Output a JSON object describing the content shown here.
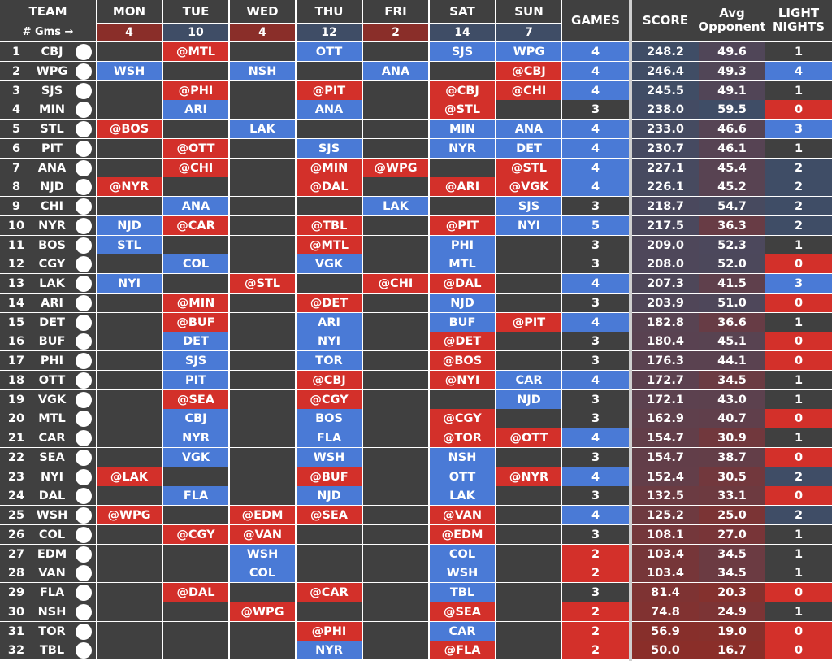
{
  "colors": {
    "blue": "#4a7ad6",
    "red": "#d3302a",
    "dark": "#404040",
    "darkred": "#8a2e29",
    "slate": "#3f4d66"
  },
  "header": {
    "team": "TEAM",
    "gms_label": "# Gms →",
    "days": [
      "MON",
      "TUE",
      "WED",
      "THU",
      "FRI",
      "SAT",
      "SUN"
    ],
    "day_games": [
      "4",
      "10",
      "4",
      "12",
      "2",
      "14",
      "7"
    ],
    "games": "GAMES",
    "score": "SCORE",
    "avg_line1": "Avg",
    "avg_line2": "Opponent",
    "light_line1": "LIGHT",
    "light_line2": "NIGHTS"
  },
  "chart_data": {
    "type": "table",
    "columns": [
      "#",
      "TEAM",
      "MON",
      "TUE",
      "WED",
      "THU",
      "FRI",
      "SAT",
      "SUN",
      "GAMES",
      "SCORE",
      "Avg Opponent",
      "LIGHT NIGHTS"
    ],
    "rows": [
      {
        "rank": "1",
        "team": "CBJ",
        "days": [
          "",
          "@MTL",
          "",
          "OTT",
          "",
          "SJS",
          "WPG"
        ],
        "games": "4",
        "score": "248.2",
        "avg": "49.6",
        "light": "1"
      },
      {
        "rank": "2",
        "team": "WPG",
        "days": [
          "WSH",
          "",
          "NSH",
          "",
          "ANA",
          "",
          "@CBJ"
        ],
        "games": "4",
        "score": "246.4",
        "avg": "49.3",
        "light": "4"
      },
      {
        "rank": "3",
        "team": "SJS",
        "days": [
          "",
          "@PHI",
          "",
          "@PIT",
          "",
          "@CBJ",
          "@CHI"
        ],
        "games": "4",
        "score": "245.5",
        "avg": "49.1",
        "light": "1"
      },
      {
        "rank": "4",
        "team": "MIN",
        "days": [
          "",
          "ARI",
          "",
          "ANA",
          "",
          "@STL",
          ""
        ],
        "games": "3",
        "score": "238.0",
        "avg": "59.5",
        "light": "0"
      },
      {
        "rank": "5",
        "team": "STL",
        "days": [
          "@BOS",
          "",
          "LAK",
          "",
          "",
          "MIN",
          "ANA"
        ],
        "games": "4",
        "score": "233.0",
        "avg": "46.6",
        "light": "3"
      },
      {
        "rank": "6",
        "team": "PIT",
        "days": [
          "",
          "@OTT",
          "",
          "SJS",
          "",
          "NYR",
          "DET"
        ],
        "games": "4",
        "score": "230.7",
        "avg": "46.1",
        "light": "1"
      },
      {
        "rank": "7",
        "team": "ANA",
        "days": [
          "",
          "@CHI",
          "",
          "@MIN",
          "@WPG",
          "",
          "@STL"
        ],
        "games": "4",
        "score": "227.1",
        "avg": "45.4",
        "light": "2"
      },
      {
        "rank": "8",
        "team": "NJD",
        "days": [
          "@NYR",
          "",
          "",
          "@DAL",
          "",
          "@ARI",
          "@VGK"
        ],
        "games": "4",
        "score": "226.1",
        "avg": "45.2",
        "light": "2"
      },
      {
        "rank": "9",
        "team": "CHI",
        "days": [
          "",
          "ANA",
          "",
          "",
          "LAK",
          "",
          "SJS"
        ],
        "games": "3",
        "score": "218.7",
        "avg": "54.7",
        "light": "2"
      },
      {
        "rank": "10",
        "team": "NYR",
        "days": [
          "NJD",
          "@CAR",
          "",
          "@TBL",
          "",
          "@PIT",
          "NYI"
        ],
        "games": "5",
        "score": "217.5",
        "avg": "36.3",
        "light": "2"
      },
      {
        "rank": "11",
        "team": "BOS",
        "days": [
          "STL",
          "",
          "",
          "@MTL",
          "",
          "PHI",
          ""
        ],
        "games": "3",
        "score": "209.0",
        "avg": "52.3",
        "light": "1"
      },
      {
        "rank": "12",
        "team": "CGY",
        "days": [
          "",
          "COL",
          "",
          "VGK",
          "",
          "MTL",
          ""
        ],
        "games": "3",
        "score": "208.0",
        "avg": "52.0",
        "light": "0"
      },
      {
        "rank": "13",
        "team": "LAK",
        "days": [
          "NYI",
          "",
          "@STL",
          "",
          "@CHI",
          "@DAL",
          ""
        ],
        "games": "4",
        "score": "207.3",
        "avg": "41.5",
        "light": "3"
      },
      {
        "rank": "14",
        "team": "ARI",
        "days": [
          "",
          "@MIN",
          "",
          "@DET",
          "",
          "NJD",
          ""
        ],
        "games": "3",
        "score": "203.9",
        "avg": "51.0",
        "light": "0"
      },
      {
        "rank": "15",
        "team": "DET",
        "days": [
          "",
          "@BUF",
          "",
          "ARI",
          "",
          "BUF",
          "@PIT"
        ],
        "games": "4",
        "score": "182.8",
        "avg": "36.6",
        "light": "1"
      },
      {
        "rank": "16",
        "team": "BUF",
        "days": [
          "",
          "DET",
          "",
          "NYI",
          "",
          "@DET",
          ""
        ],
        "games": "3",
        "score": "180.4",
        "avg": "45.1",
        "light": "0"
      },
      {
        "rank": "17",
        "team": "PHI",
        "days": [
          "",
          "SJS",
          "",
          "TOR",
          "",
          "@BOS",
          ""
        ],
        "games": "3",
        "score": "176.3",
        "avg": "44.1",
        "light": "0"
      },
      {
        "rank": "18",
        "team": "OTT",
        "days": [
          "",
          "PIT",
          "",
          "@CBJ",
          "",
          "@NYI",
          "CAR"
        ],
        "games": "4",
        "score": "172.7",
        "avg": "34.5",
        "light": "1"
      },
      {
        "rank": "19",
        "team": "VGK",
        "days": [
          "",
          "@SEA",
          "",
          "@CGY",
          "",
          "",
          "NJD"
        ],
        "games": "3",
        "score": "172.1",
        "avg": "43.0",
        "light": "1"
      },
      {
        "rank": "20",
        "team": "MTL",
        "days": [
          "",
          "CBJ",
          "",
          "BOS",
          "",
          "@CGY",
          ""
        ],
        "games": "3",
        "score": "162.9",
        "avg": "40.7",
        "light": "0"
      },
      {
        "rank": "21",
        "team": "CAR",
        "days": [
          "",
          "NYR",
          "",
          "FLA",
          "",
          "@TOR",
          "@OTT"
        ],
        "games": "4",
        "score": "154.7",
        "avg": "30.9",
        "light": "1"
      },
      {
        "rank": "22",
        "team": "SEA",
        "days": [
          "",
          "VGK",
          "",
          "WSH",
          "",
          "NSH",
          ""
        ],
        "games": "3",
        "score": "154.7",
        "avg": "38.7",
        "light": "0"
      },
      {
        "rank": "23",
        "team": "NYI",
        "days": [
          "@LAK",
          "",
          "",
          "@BUF",
          "",
          "OTT",
          "@NYR"
        ],
        "games": "4",
        "score": "152.4",
        "avg": "30.5",
        "light": "2"
      },
      {
        "rank": "24",
        "team": "DAL",
        "days": [
          "",
          "FLA",
          "",
          "NJD",
          "",
          "LAK",
          ""
        ],
        "games": "3",
        "score": "132.5",
        "avg": "33.1",
        "light": "0"
      },
      {
        "rank": "25",
        "team": "WSH",
        "days": [
          "@WPG",
          "",
          "@EDM",
          "@SEA",
          "",
          "@VAN",
          ""
        ],
        "games": "4",
        "score": "125.2",
        "avg": "25.0",
        "light": "2"
      },
      {
        "rank": "26",
        "team": "COL",
        "days": [
          "",
          "@CGY",
          "@VAN",
          "",
          "",
          "@EDM",
          ""
        ],
        "games": "3",
        "score": "108.1",
        "avg": "27.0",
        "light": "1"
      },
      {
        "rank": "27",
        "team": "EDM",
        "days": [
          "",
          "",
          "WSH",
          "",
          "",
          "COL",
          ""
        ],
        "games": "2",
        "score": "103.4",
        "avg": "34.5",
        "light": "1"
      },
      {
        "rank": "28",
        "team": "VAN",
        "days": [
          "",
          "",
          "COL",
          "",
          "",
          "WSH",
          ""
        ],
        "games": "2",
        "score": "103.4",
        "avg": "34.5",
        "light": "1"
      },
      {
        "rank": "29",
        "team": "FLA",
        "days": [
          "",
          "@DAL",
          "",
          "@CAR",
          "",
          "TBL",
          ""
        ],
        "games": "3",
        "score": "81.4",
        "avg": "20.3",
        "light": "0"
      },
      {
        "rank": "30",
        "team": "NSH",
        "days": [
          "",
          "",
          "@WPG",
          "",
          "",
          "@SEA",
          ""
        ],
        "games": "2",
        "score": "74.8",
        "avg": "24.9",
        "light": "1"
      },
      {
        "rank": "31",
        "team": "TOR",
        "days": [
          "",
          "",
          "",
          "@PHI",
          "",
          "CAR",
          ""
        ],
        "games": "2",
        "score": "56.9",
        "avg": "19.0",
        "light": "0"
      },
      {
        "rank": "32",
        "team": "TBL",
        "days": [
          "",
          "",
          "",
          "NYR",
          "",
          "@FLA",
          ""
        ],
        "games": "2",
        "score": "50.0",
        "avg": "16.7",
        "light": "0"
      }
    ]
  }
}
